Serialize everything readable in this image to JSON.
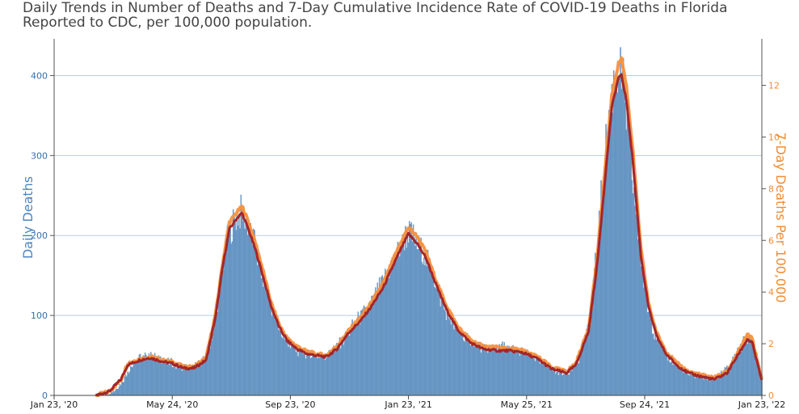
{
  "chart_data": {
    "type": "bar",
    "title": "Daily Trends in Number of Deaths and 7-Day Cumulative Incidence Rate of COVID-19 Deaths in Florida Reported to CDC, per 100,000 population.",
    "ylabel_left": "Daily Deaths",
    "ylabel_right": "7-Day Deaths Per 100,000",
    "x_range": [
      "2020-01-23",
      "2022-01-23"
    ],
    "x_ticks": [
      {
        "date": "2020-01-23",
        "label": "Jan 23, '20"
      },
      {
        "date": "2020-05-24",
        "label": "May 24, '20"
      },
      {
        "date": "2020-09-23",
        "label": "Sep 23, '20"
      },
      {
        "date": "2021-01-23",
        "label": "Jan 23, '21"
      },
      {
        "date": "2021-05-25",
        "label": "May 25, '21"
      },
      {
        "date": "2021-09-24",
        "label": "Sep 24, '21"
      },
      {
        "date": "2022-01-23",
        "label": "Jan 23, '22"
      }
    ],
    "y_left": {
      "range": [
        0,
        446
      ],
      "ticks": [
        0,
        100,
        200,
        300,
        400
      ]
    },
    "y_right": {
      "range": [
        0,
        13.8
      ],
      "ticks": [
        0,
        2,
        4,
        6,
        8,
        10,
        12
      ]
    },
    "grid": true,
    "colors": {
      "bars": "#6f9ecb",
      "bar_edge": "#4f7fb0",
      "seven_day_avg": "#a3262a",
      "rate": "#f6913d",
      "grid": "#b7cde2",
      "left_axis": "#3a6ea5",
      "right_axis": "#f08c33"
    },
    "series": [
      {
        "kind": "bars",
        "axis": "left",
        "anchors": [
          [
            "2020-01-23",
            0
          ],
          [
            "2020-03-05",
            0
          ],
          [
            "2020-03-15",
            2
          ],
          [
            "2020-03-25",
            6
          ],
          [
            "2020-04-01",
            15
          ],
          [
            "2020-04-08",
            30
          ],
          [
            "2020-04-15",
            42
          ],
          [
            "2020-04-22",
            47
          ],
          [
            "2020-04-30",
            50
          ],
          [
            "2020-05-07",
            48
          ],
          [
            "2020-05-15",
            43
          ],
          [
            "2020-05-24",
            40
          ],
          [
            "2020-06-01",
            36
          ],
          [
            "2020-06-10",
            34
          ],
          [
            "2020-06-20",
            38
          ],
          [
            "2020-06-30",
            52
          ],
          [
            "2020-07-08",
            100
          ],
          [
            "2020-07-15",
            160
          ],
          [
            "2020-07-22",
            205
          ],
          [
            "2020-07-29",
            222
          ],
          [
            "2020-08-04",
            230
          ],
          [
            "2020-08-10",
            212
          ],
          [
            "2020-08-18",
            185
          ],
          [
            "2020-08-25",
            150
          ],
          [
            "2020-09-01",
            118
          ],
          [
            "2020-09-08",
            92
          ],
          [
            "2020-09-15",
            75
          ],
          [
            "2020-09-23",
            62
          ],
          [
            "2020-10-01",
            55
          ],
          [
            "2020-10-10",
            52
          ],
          [
            "2020-10-20",
            50
          ],
          [
            "2020-10-28",
            48
          ],
          [
            "2020-11-05",
            55
          ],
          [
            "2020-11-15",
            66
          ],
          [
            "2020-11-25",
            83
          ],
          [
            "2020-12-05",
            98
          ],
          [
            "2020-12-15",
            112
          ],
          [
            "2020-12-25",
            135
          ],
          [
            "2021-01-05",
            162
          ],
          [
            "2021-01-15",
            185
          ],
          [
            "2021-01-23",
            205
          ],
          [
            "2021-01-30",
            192
          ],
          [
            "2021-02-08",
            178
          ],
          [
            "2021-02-15",
            160
          ],
          [
            "2021-02-23",
            130
          ],
          [
            "2021-03-03",
            102
          ],
          [
            "2021-03-12",
            85
          ],
          [
            "2021-03-22",
            72
          ],
          [
            "2021-04-01",
            64
          ],
          [
            "2021-04-10",
            58
          ],
          [
            "2021-04-20",
            58
          ],
          [
            "2021-04-28",
            62
          ],
          [
            "2021-05-05",
            58
          ],
          [
            "2021-05-15",
            56
          ],
          [
            "2021-05-25",
            52
          ],
          [
            "2021-06-03",
            46
          ],
          [
            "2021-06-12",
            40
          ],
          [
            "2021-06-20",
            33
          ],
          [
            "2021-06-28",
            28
          ],
          [
            "2021-07-05",
            28
          ],
          [
            "2021-07-12",
            35
          ],
          [
            "2021-07-20",
            50
          ],
          [
            "2021-07-28",
            85
          ],
          [
            "2021-08-04",
            160
          ],
          [
            "2021-08-11",
            260
          ],
          [
            "2021-08-18",
            350
          ],
          [
            "2021-08-24",
            400
          ],
          [
            "2021-08-29",
            410
          ],
          [
            "2021-09-03",
            375
          ],
          [
            "2021-09-08",
            315
          ],
          [
            "2021-09-14",
            240
          ],
          [
            "2021-09-20",
            168
          ],
          [
            "2021-09-26",
            118
          ],
          [
            "2021-10-03",
            82
          ],
          [
            "2021-10-12",
            58
          ],
          [
            "2021-10-22",
            42
          ],
          [
            "2021-11-01",
            32
          ],
          [
            "2021-11-10",
            26
          ],
          [
            "2021-11-20",
            24
          ],
          [
            "2021-12-01",
            20
          ],
          [
            "2021-12-10",
            26
          ],
          [
            "2021-12-20",
            34
          ],
          [
            "2021-12-28",
            52
          ],
          [
            "2022-01-05",
            68
          ],
          [
            "2022-01-11",
            70
          ],
          [
            "2022-01-16",
            55
          ],
          [
            "2022-01-23",
            22
          ]
        ]
      },
      {
        "kind": "line",
        "axis": "left",
        "anchors": [
          [
            "2020-03-06",
            0
          ],
          [
            "2020-03-20",
            5
          ],
          [
            "2020-04-01",
            20
          ],
          [
            "2020-04-08",
            38
          ],
          [
            "2020-04-20",
            44
          ],
          [
            "2020-05-01",
            47
          ],
          [
            "2020-05-15",
            42
          ],
          [
            "2020-05-24",
            40
          ],
          [
            "2020-06-05",
            34
          ],
          [
            "2020-06-15",
            34
          ],
          [
            "2020-06-28",
            44
          ],
          [
            "2020-07-08",
            100
          ],
          [
            "2020-07-15",
            160
          ],
          [
            "2020-07-22",
            208
          ],
          [
            "2020-07-30",
            222
          ],
          [
            "2020-08-04",
            228
          ],
          [
            "2020-08-10",
            210
          ],
          [
            "2020-08-18",
            182
          ],
          [
            "2020-08-26",
            148
          ],
          [
            "2020-09-03",
            112
          ],
          [
            "2020-09-12",
            84
          ],
          [
            "2020-09-20",
            68
          ],
          [
            "2020-09-30",
            58
          ],
          [
            "2020-10-10",
            52
          ],
          [
            "2020-10-20",
            50
          ],
          [
            "2020-10-30",
            48
          ],
          [
            "2020-11-10",
            58
          ],
          [
            "2020-11-22",
            78
          ],
          [
            "2020-12-05",
            94
          ],
          [
            "2020-12-15",
            110
          ],
          [
            "2020-12-28",
            135
          ],
          [
            "2021-01-10",
            170
          ],
          [
            "2021-01-18",
            190
          ],
          [
            "2021-01-23",
            202
          ],
          [
            "2021-02-01",
            190
          ],
          [
            "2021-02-10",
            172
          ],
          [
            "2021-02-20",
            140
          ],
          [
            "2021-03-03",
            108
          ],
          [
            "2021-03-15",
            82
          ],
          [
            "2021-03-28",
            66
          ],
          [
            "2021-04-10",
            58
          ],
          [
            "2021-04-25",
            56
          ],
          [
            "2021-05-05",
            56
          ],
          [
            "2021-05-20",
            54
          ],
          [
            "2021-06-05",
            46
          ],
          [
            "2021-06-20",
            33
          ],
          [
            "2021-07-05",
            28
          ],
          [
            "2021-07-15",
            38
          ],
          [
            "2021-07-28",
            80
          ],
          [
            "2021-08-06",
            165
          ],
          [
            "2021-08-14",
            270
          ],
          [
            "2021-08-21",
            360
          ],
          [
            "2021-08-28",
            398
          ],
          [
            "2021-08-31",
            400
          ],
          [
            "2021-09-05",
            370
          ],
          [
            "2021-09-12",
            290
          ],
          [
            "2021-09-20",
            175
          ],
          [
            "2021-09-28",
            110
          ],
          [
            "2021-10-06",
            75
          ],
          [
            "2021-10-16",
            52
          ],
          [
            "2021-10-27",
            38
          ],
          [
            "2021-11-08",
            28
          ],
          [
            "2021-11-20",
            24
          ],
          [
            "2021-12-05",
            20
          ],
          [
            "2021-12-18",
            28
          ],
          [
            "2021-12-30",
            52
          ],
          [
            "2022-01-08",
            70
          ],
          [
            "2022-01-13",
            66
          ],
          [
            "2022-01-18",
            42
          ],
          [
            "2022-01-23",
            18
          ]
        ]
      },
      {
        "kind": "line",
        "axis": "right",
        "anchors": [
          [
            "2020-03-06",
            0
          ],
          [
            "2020-03-20",
            0.15
          ],
          [
            "2020-04-01",
            0.6
          ],
          [
            "2020-04-08",
            1.25
          ],
          [
            "2020-04-20",
            1.4
          ],
          [
            "2020-05-01",
            1.5
          ],
          [
            "2020-05-15",
            1.35
          ],
          [
            "2020-05-24",
            1.3
          ],
          [
            "2020-06-05",
            1.1
          ],
          [
            "2020-06-15",
            1.1
          ],
          [
            "2020-06-28",
            1.45
          ],
          [
            "2020-07-08",
            3.2
          ],
          [
            "2020-07-15",
            5.1
          ],
          [
            "2020-07-22",
            6.7
          ],
          [
            "2020-07-30",
            7.1
          ],
          [
            "2020-08-04",
            7.3
          ],
          [
            "2020-08-10",
            6.8
          ],
          [
            "2020-08-18",
            5.9
          ],
          [
            "2020-08-26",
            4.8
          ],
          [
            "2020-09-03",
            3.6
          ],
          [
            "2020-09-12",
            2.7
          ],
          [
            "2020-09-20",
            2.2
          ],
          [
            "2020-09-30",
            1.9
          ],
          [
            "2020-10-10",
            1.7
          ],
          [
            "2020-10-20",
            1.6
          ],
          [
            "2020-10-30",
            1.55
          ],
          [
            "2020-11-10",
            1.9
          ],
          [
            "2020-11-22",
            2.5
          ],
          [
            "2020-12-05",
            3.05
          ],
          [
            "2020-12-15",
            3.55
          ],
          [
            "2020-12-28",
            4.35
          ],
          [
            "2021-01-10",
            5.5
          ],
          [
            "2021-01-18",
            6.15
          ],
          [
            "2021-01-23",
            6.5
          ],
          [
            "2021-02-01",
            6.15
          ],
          [
            "2021-02-10",
            5.55
          ],
          [
            "2021-02-20",
            4.5
          ],
          [
            "2021-03-03",
            3.5
          ],
          [
            "2021-03-15",
            2.65
          ],
          [
            "2021-03-28",
            2.15
          ],
          [
            "2021-04-10",
            1.9
          ],
          [
            "2021-04-25",
            1.85
          ],
          [
            "2021-05-05",
            1.82
          ],
          [
            "2021-05-20",
            1.75
          ],
          [
            "2021-06-05",
            1.5
          ],
          [
            "2021-06-20",
            1.08
          ],
          [
            "2021-07-05",
            0.92
          ],
          [
            "2021-07-15",
            1.25
          ],
          [
            "2021-07-28",
            2.6
          ],
          [
            "2021-08-06",
            5.35
          ],
          [
            "2021-08-14",
            8.75
          ],
          [
            "2021-08-21",
            11.6
          ],
          [
            "2021-08-28",
            12.85
          ],
          [
            "2021-08-31",
            13.05
          ],
          [
            "2021-09-05",
            12.0
          ],
          [
            "2021-09-12",
            9.4
          ],
          [
            "2021-09-20",
            5.7
          ],
          [
            "2021-09-28",
            3.55
          ],
          [
            "2021-10-06",
            2.45
          ],
          [
            "2021-10-16",
            1.7
          ],
          [
            "2021-10-27",
            1.25
          ],
          [
            "2021-11-08",
            0.92
          ],
          [
            "2021-11-20",
            0.8
          ],
          [
            "2021-12-05",
            0.68
          ],
          [
            "2021-12-18",
            0.92
          ],
          [
            "2021-12-30",
            1.7
          ],
          [
            "2022-01-08",
            2.35
          ],
          [
            "2022-01-13",
            2.2
          ],
          [
            "2022-01-18",
            1.4
          ],
          [
            "2022-01-23",
            0.6
          ]
        ]
      }
    ]
  }
}
